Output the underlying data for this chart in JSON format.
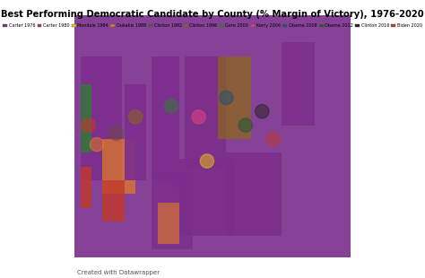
{
  "title": "Best Performing Democratic Candidate by County (% Margin of Victory), 1976-2020",
  "title_fontsize": 7.2,
  "legend_entries": [
    {
      "label": "Carter 1976",
      "color": "#7b2d8b"
    },
    {
      "label": "Carter 1980",
      "color": "#c0392b"
    },
    {
      "label": "Mondale 1984",
      "color": "#f1c40f"
    },
    {
      "label": "Dukakis 1988",
      "color": "#e67e22"
    },
    {
      "label": "Clinton 1992",
      "color": "#6d4c41"
    },
    {
      "label": "Clinton 1996",
      "color": "#8b6914"
    },
    {
      "label": "Gore 2000",
      "color": "#2e7d32"
    },
    {
      "label": "Kerry 2004",
      "color": "#ec407a"
    },
    {
      "label": "Obama 2008",
      "color": "#1a5276"
    },
    {
      "label": "Obama 2012",
      "color": "#145a32"
    },
    {
      "label": "Clinton 2016",
      "color": "#212121"
    },
    {
      "label": "Biden 2020",
      "color": "#c0392b"
    }
  ],
  "background_color": "#ffffff",
  "map_bg": "#d0d0d0",
  "credit": "Created with Datawrapper",
  "credit_fontsize": 5,
  "figsize": [
    4.74,
    3.1
  ],
  "dpi": 100
}
